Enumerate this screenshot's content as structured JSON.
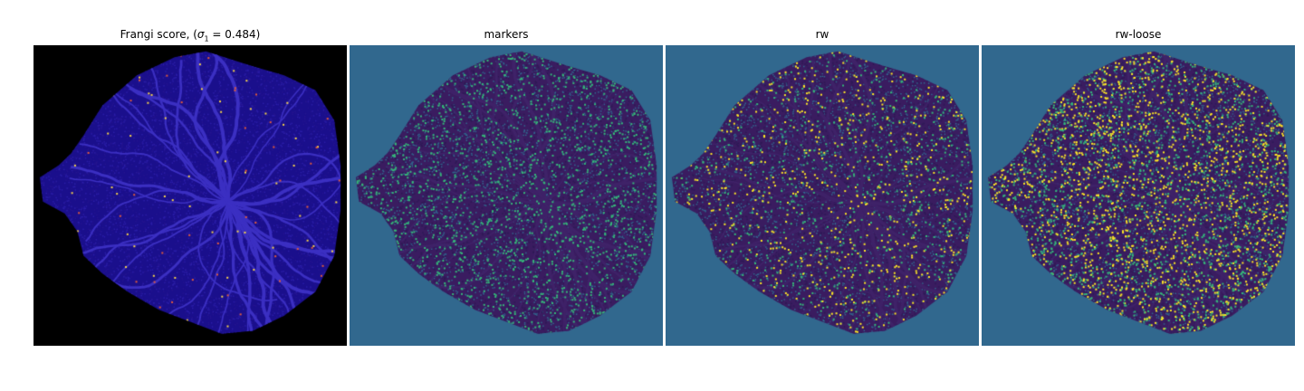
{
  "panels": [
    {
      "title_prefix": "Frangi score, (",
      "title_sigma": "σ",
      "title_sub": "1",
      "title_suffix": " = 0.484)",
      "background": "#000000",
      "base": "#1a0f8c",
      "ridge": "#2b1ea8",
      "highlight": "#e25a3a",
      "highlight2": "#f8d44a",
      "highlight_density": 0.004
    },
    {
      "title": "markers",
      "background": "#31688e",
      "base": "#3a1c60",
      "ridge": "#2d1a55",
      "highlight": "#35b779",
      "highlight2": "#35b779",
      "highlight_density": 0.06
    },
    {
      "title": "rw",
      "background": "#31688e",
      "base": "#3a1c60",
      "ridge": "#2d1a55",
      "highlight": "#35b779",
      "highlight2": "#fde725",
      "highlight_density": 0.05
    },
    {
      "title": "rw-loose",
      "background": "#31688e",
      "base": "#3a1c60",
      "ridge": "#2d1a55",
      "highlight": "#35b779",
      "highlight2": "#fde725",
      "highlight_density": 0.12
    }
  ]
}
